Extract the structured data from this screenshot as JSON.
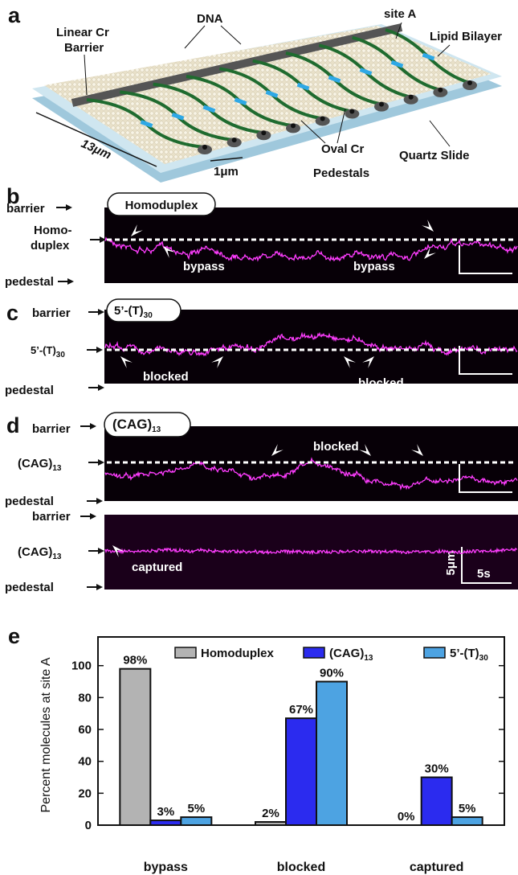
{
  "panel_a": {
    "label": "a",
    "barrier": [
      "Linear Cr",
      "Barrier"
    ],
    "dna": "DNA",
    "site": "site A",
    "bilayer": "Lipid Bilayer",
    "length": "13μm",
    "scale": "1μm",
    "pedestals": [
      "Oval Cr",
      "Pedestals"
    ],
    "slide": "Quartz Slide"
  },
  "panel_b": {
    "label": "b",
    "barrier": "barrier",
    "site": [
      "Homo-",
      "duplex"
    ],
    "pedestal": "pedestal",
    "tag": "Homoduplex",
    "events": [
      "bypass",
      "bypass"
    ]
  },
  "panel_c": {
    "label": "c",
    "barrier": "barrier",
    "site": {
      "text": "5’-(T)",
      "sub": "30"
    },
    "pedestal": "pedestal",
    "tag": {
      "text": "5’-(T)",
      "sub": "30"
    },
    "events": [
      "blocked",
      "blocked"
    ]
  },
  "panel_d": {
    "label": "d",
    "barrier": "barrier",
    "site": {
      "text": "(CAG)",
      "sub": "13"
    },
    "pedestal": "pedestal",
    "tag": {
      "text": "(CAG)",
      "sub": "13"
    },
    "events": [
      "blocked"
    ],
    "lower": {
      "barrier": "barrier",
      "site": {
        "text": "(CAG)",
        "sub": "13"
      },
      "pedestal": "pedestal",
      "event": "captured",
      "scale_y": "5μm",
      "scale_x": "5s"
    }
  },
  "chart_data": {
    "type": "bar",
    "panel_label": "e",
    "y_label": "Percent molecules at site A",
    "categories": [
      "bypass",
      "blocked",
      "captured"
    ],
    "series": [
      {
        "name": "Homoduplex",
        "color": "#b3b3b3",
        "values": [
          98,
          2,
          0
        ],
        "value_labels": [
          "98%",
          "2%",
          "0%"
        ]
      },
      {
        "name": "(CAG)",
        "name_sub": "13",
        "color": "#2b2bef",
        "values": [
          3,
          67,
          30
        ],
        "value_labels": [
          "3%",
          "67%",
          "30%"
        ]
      },
      {
        "name": "5’-(T)",
        "name_sub": "30",
        "color": "#4da3e2",
        "values": [
          5,
          90,
          5
        ],
        "value_labels": [
          "5%",
          "90%",
          "5%"
        ]
      }
    ],
    "ylim": [
      0,
      118
    ],
    "yticks": [
      0,
      20,
      40,
      60,
      80,
      100
    ]
  }
}
